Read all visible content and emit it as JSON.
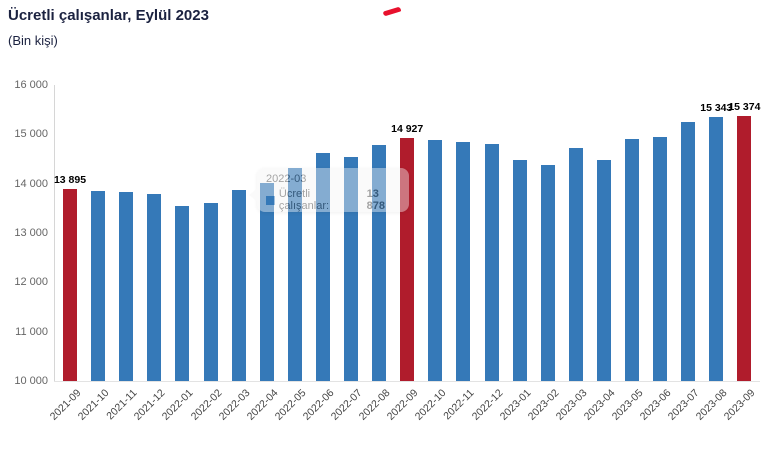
{
  "header": {
    "title": "Ücretli çalışanlar, Eylül 2023",
    "subtitle": "(Bin kişi)"
  },
  "colors": {
    "bar_blue": "#3579b8",
    "bar_red": "#b01c2c",
    "title_text": "#1b2240",
    "axis_text": "#666666"
  },
  "tooltip": {
    "header": "2022-03",
    "series_label": "Ücretli çalışanlar:",
    "value": "13 878"
  },
  "chart_data": {
    "type": "bar",
    "title": "Ücretli çalışanlar, Eylül 2023",
    "subtitle": "(Bin kişi)",
    "ylabel": "",
    "xlabel": "",
    "ylim": [
      10000,
      16000
    ],
    "grid": false,
    "legend": "none",
    "y_ticks": [
      {
        "value": 16000,
        "label": "16 000"
      },
      {
        "value": 15000,
        "label": "15 000"
      },
      {
        "value": 14000,
        "label": "14 000"
      },
      {
        "value": 13000,
        "label": "13 000"
      },
      {
        "value": 12000,
        "label": "12 000"
      },
      {
        "value": 11000,
        "label": "11 000"
      },
      {
        "value": 10000,
        "label": "10 000"
      }
    ],
    "categories": [
      "2021-09",
      "2021-10",
      "2021-11",
      "2021-12",
      "2022-01",
      "2022-02",
      "2022-03",
      "2022-04",
      "2022-05",
      "2022-06",
      "2022-07",
      "2022-08",
      "2022-09",
      "2022-10",
      "2022-11",
      "2022-12",
      "2023-01",
      "2023-02",
      "2023-03",
      "2023-04",
      "2023-05",
      "2023-06",
      "2023-07",
      "2023-08",
      "2023-09"
    ],
    "values": [
      13895,
      13860,
      13835,
      13795,
      13546,
      13611,
      13878,
      14018,
      14319,
      14630,
      14549,
      14775,
      14927,
      14880,
      14840,
      14800,
      14490,
      14385,
      14716,
      14490,
      14900,
      14950,
      15249,
      15343,
      15374
    ],
    "highlighted_indices": [
      0,
      12,
      24
    ],
    "data_labels": [
      {
        "index": 0,
        "text": "13 895"
      },
      {
        "index": 12,
        "text": "14 927"
      },
      {
        "index": 23,
        "text": "15 343"
      },
      {
        "index": 24,
        "text": "15 374"
      }
    ]
  }
}
